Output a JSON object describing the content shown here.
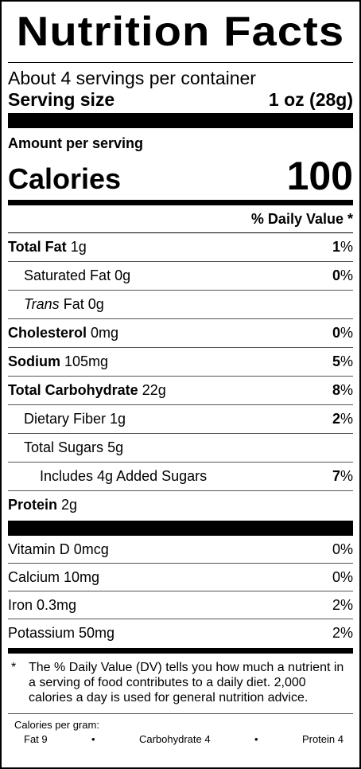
{
  "header": {
    "title": "Nutrition Facts",
    "servings_per_container": "About 4 servings per container",
    "serving_size_label": "Serving size",
    "serving_size_value": "1 oz (28g)"
  },
  "calories_section": {
    "amount_per_serving": "Amount per serving",
    "label": "Calories",
    "value": "100"
  },
  "daily_value_header": "% Daily Value *",
  "nutrients": [
    {
      "name": "Total Fat",
      "amount": "1g",
      "dv_num": "1",
      "dv_sign": "%"
    },
    {
      "name": "Saturated Fat",
      "amount": "0g",
      "dv_num": "0",
      "dv_sign": "%"
    },
    {
      "name_italic": "Trans",
      "name_rest": "Fat",
      "amount": "0g"
    },
    {
      "name": "Cholesterol",
      "amount": "0mg",
      "dv_num": "0",
      "dv_sign": "%"
    },
    {
      "name": "Sodium",
      "amount": "105mg",
      "dv_num": "5",
      "dv_sign": "%"
    },
    {
      "name": "Total Carbohydrate",
      "amount": "22g",
      "dv_num": "8",
      "dv_sign": "%"
    },
    {
      "name": "Dietary Fiber",
      "amount": "1g",
      "dv_num": "2",
      "dv_sign": "%"
    },
    {
      "name": "Total Sugars",
      "amount": "5g"
    },
    {
      "name": "Includes 4g Added Sugars",
      "dv_num": "7",
      "dv_sign": "%"
    },
    {
      "name": "Protein",
      "amount": "2g"
    }
  ],
  "vitamins": [
    {
      "label": "Vitamin D 0mcg",
      "dv": "0%"
    },
    {
      "label": "Calcium 10mg",
      "dv": "0%"
    },
    {
      "label": "Iron 0.3mg",
      "dv": "2%"
    },
    {
      "label": "Potassium 50mg",
      "dv": "2%"
    }
  ],
  "footnote": {
    "star": "*",
    "text": "The % Daily Value (DV) tells you how much a nutrient in a serving of food contributes to a daily diet. 2,000 calories a day is used for general nutrition advice."
  },
  "calories_per_gram": {
    "title": "Calories per gram:",
    "fat": "Fat 9",
    "carbohydrate": "Carbohydrate 4",
    "protein": "Protein 4",
    "separator": "•"
  }
}
